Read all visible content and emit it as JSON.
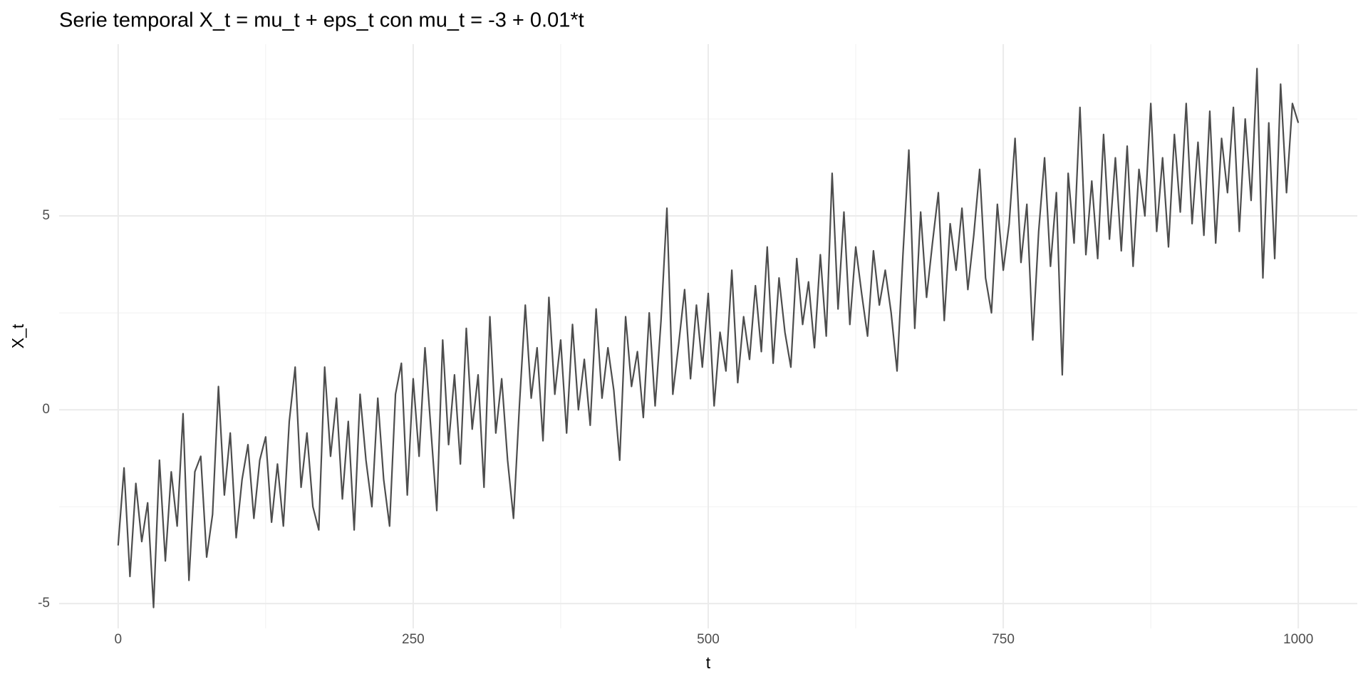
{
  "chart_data": {
    "type": "line",
    "title": "Serie temporal X_t = mu_t + eps_t con mu_t = -3 + 0.01*t",
    "x_label": "t",
    "y_label": "X_t",
    "xlim": [
      -50,
      1050
    ],
    "ylim": [
      -5.64,
      9.43
    ],
    "xticks": [
      0,
      250,
      500,
      750,
      1000
    ],
    "yticks": [
      -5,
      0,
      5
    ],
    "x_minor_grid": [
      125,
      375,
      625,
      875
    ],
    "y_minor_grid": [
      -2.5,
      2.5,
      7.5
    ],
    "grid": true,
    "color": "#4d4d4d",
    "x": [
      0,
      5,
      10,
      15,
      20,
      25,
      30,
      35,
      40,
      45,
      50,
      55,
      60,
      65,
      70,
      75,
      80,
      85,
      90,
      95,
      100,
      105,
      110,
      115,
      120,
      125,
      130,
      135,
      140,
      145,
      150,
      155,
      160,
      165,
      170,
      175,
      180,
      185,
      190,
      195,
      200,
      205,
      210,
      215,
      220,
      225,
      230,
      235,
      240,
      245,
      250,
      255,
      260,
      265,
      270,
      275,
      280,
      285,
      290,
      295,
      300,
      305,
      310,
      315,
      320,
      325,
      330,
      335,
      340,
      345,
      350,
      355,
      360,
      365,
      370,
      375,
      380,
      385,
      390,
      395,
      400,
      405,
      410,
      415,
      420,
      425,
      430,
      435,
      440,
      445,
      450,
      455,
      460,
      465,
      470,
      475,
      480,
      485,
      490,
      495,
      500,
      505,
      510,
      515,
      520,
      525,
      530,
      535,
      540,
      545,
      550,
      555,
      560,
      565,
      570,
      575,
      580,
      585,
      590,
      595,
      600,
      605,
      610,
      615,
      620,
      625,
      630,
      635,
      640,
      645,
      650,
      655,
      660,
      665,
      670,
      675,
      680,
      685,
      690,
      695,
      700,
      705,
      710,
      715,
      720,
      725,
      730,
      735,
      740,
      745,
      750,
      755,
      760,
      765,
      770,
      775,
      780,
      785,
      790,
      795,
      800,
      805,
      810,
      815,
      820,
      825,
      830,
      835,
      840,
      845,
      850,
      855,
      860,
      865,
      870,
      875,
      880,
      885,
      890,
      895,
      900,
      905,
      910,
      915,
      920,
      925,
      930,
      935,
      940,
      945,
      950,
      955,
      960,
      965,
      970,
      975,
      980,
      985,
      990,
      995,
      1000
    ],
    "values": [
      -3.5,
      -1.5,
      -4.3,
      -1.9,
      -3.4,
      -2.4,
      -5.1,
      -1.3,
      -3.9,
      -1.6,
      -3.0,
      -0.1,
      -4.4,
      -1.6,
      -1.2,
      -3.8,
      -2.7,
      0.6,
      -2.2,
      -0.6,
      -3.3,
      -1.8,
      -0.9,
      -2.8,
      -1.3,
      -0.7,
      -2.9,
      -1.4,
      -3.0,
      -0.3,
      1.1,
      -2.0,
      -0.6,
      -2.5,
      -3.1,
      1.1,
      -1.2,
      0.3,
      -2.3,
      -0.3,
      -3.1,
      0.4,
      -1.3,
      -2.5,
      0.3,
      -1.8,
      -3.0,
      0.4,
      1.2,
      -2.2,
      0.8,
      -1.2,
      1.6,
      -0.5,
      -2.6,
      1.8,
      -0.9,
      0.9,
      -1.4,
      2.1,
      -0.5,
      0.9,
      -2.0,
      2.4,
      -0.6,
      0.8,
      -1.3,
      -2.8,
      0.1,
      2.7,
      0.3,
      1.6,
      -0.8,
      2.9,
      0.4,
      1.8,
      -0.6,
      2.2,
      0.0,
      1.3,
      -0.4,
      2.6,
      0.3,
      1.6,
      0.5,
      -1.3,
      2.4,
      0.6,
      1.5,
      -0.2,
      2.5,
      0.1,
      2.3,
      5.2,
      0.4,
      1.7,
      3.1,
      0.8,
      2.7,
      1.1,
      3.0,
      0.1,
      2.0,
      1.0,
      3.6,
      0.7,
      2.4,
      1.3,
      3.2,
      1.5,
      4.2,
      1.2,
      3.4,
      2.0,
      1.1,
      3.9,
      2.2,
      3.3,
      1.6,
      4.0,
      1.9,
      6.1,
      2.6,
      5.1,
      2.2,
      4.2,
      3.0,
      1.9,
      4.1,
      2.7,
      3.6,
      2.5,
      1.0,
      4.0,
      6.7,
      2.1,
      5.1,
      2.9,
      4.3,
      5.6,
      2.3,
      4.8,
      3.6,
      5.2,
      3.1,
      4.5,
      6.2,
      3.4,
      2.5,
      5.3,
      3.6,
      4.8,
      7.0,
      3.8,
      5.3,
      1.8,
      4.6,
      6.5,
      3.7,
      5.6,
      0.9,
      6.1,
      4.3,
      7.8,
      4.0,
      5.9,
      3.9,
      7.1,
      4.4,
      6.5,
      4.1,
      6.8,
      3.7,
      6.2,
      5.0,
      7.9,
      4.6,
      6.5,
      4.2,
      7.1,
      5.1,
      7.9,
      4.8,
      6.9,
      4.5,
      7.7,
      4.3,
      7.0,
      5.6,
      7.8,
      4.6,
      7.5,
      5.4,
      8.8,
      3.4,
      7.4,
      3.9,
      8.4,
      5.6,
      7.9,
      7.4
    ]
  }
}
